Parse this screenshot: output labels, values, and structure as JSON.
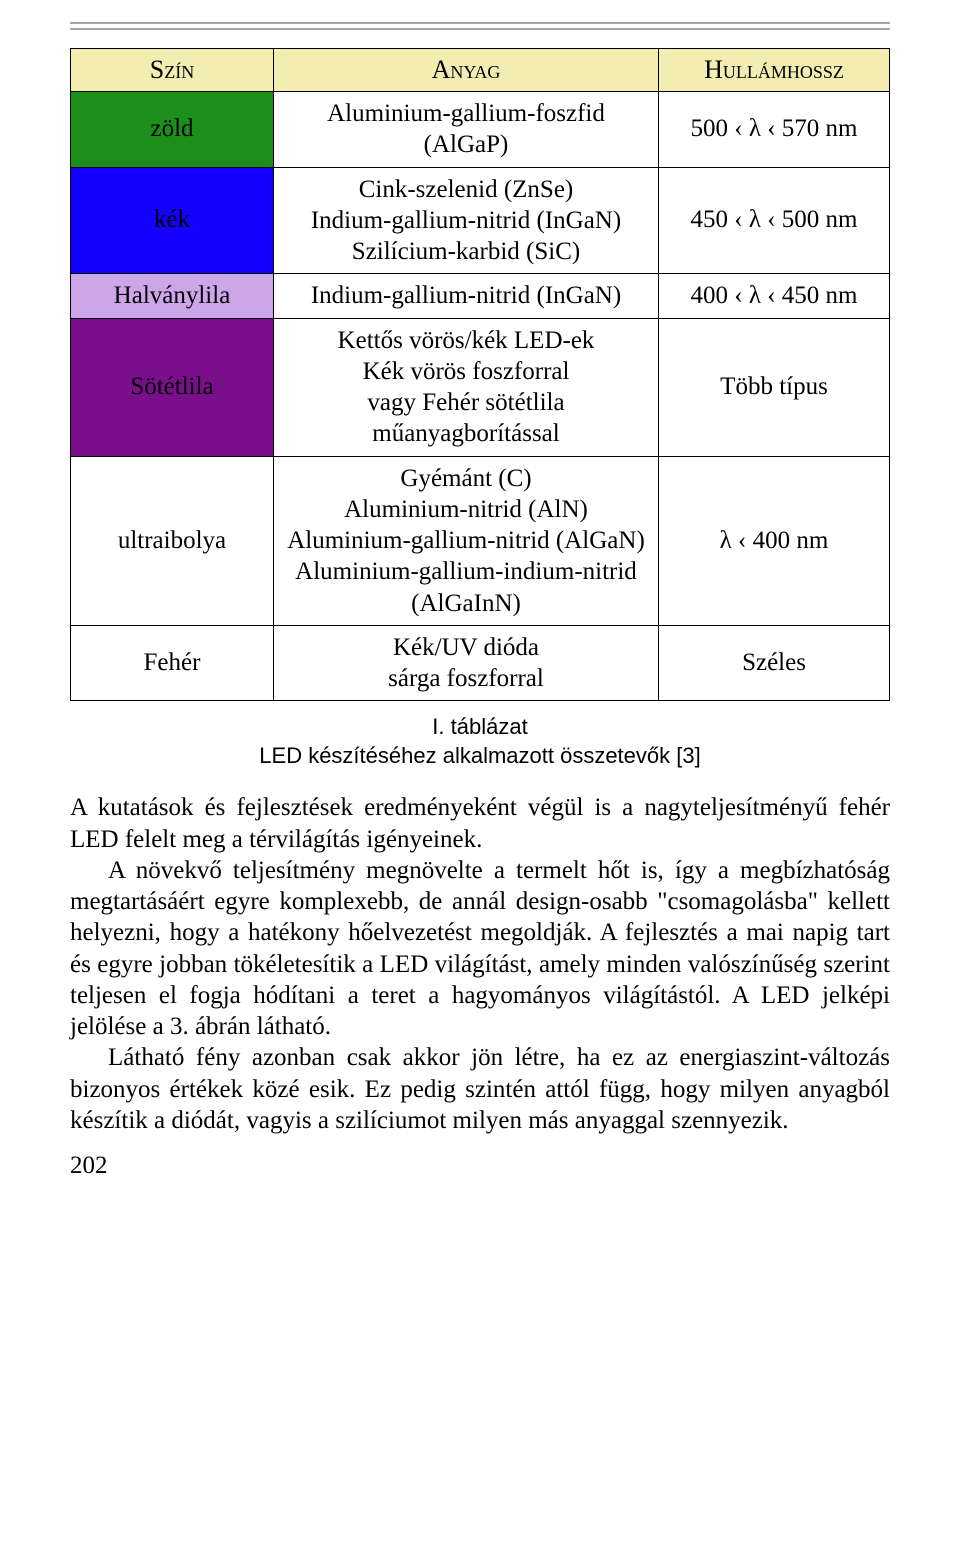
{
  "table": {
    "headers": {
      "color": "Szín",
      "material": "Anyag",
      "wavelength": "Hullámhossz"
    },
    "rows": [
      {
        "color_label": "zöld",
        "color_hex": "#1b8e1b",
        "text_color": "#000000",
        "material": "Aluminium-gallium-foszfid (AlGaP)",
        "wavelength": "500 ‹ λ ‹ 570 nm"
      },
      {
        "color_label": "kék",
        "color_hex": "#1400ff",
        "text_color": "#000000",
        "material": "Cink-szelenid (ZnSe)\nIndium-gallium-nitrid (InGaN)\nSzilícium-karbid (SiC)",
        "wavelength": "450 ‹ λ ‹ 500 nm"
      },
      {
        "color_label": "Halványlila",
        "color_hex": "#cda6ea",
        "text_color": "#000000",
        "material": "Indium-gallium-nitrid (InGaN)",
        "wavelength": "400 ‹ λ ‹ 450 nm"
      },
      {
        "color_label": "Sötétlila",
        "color_hex": "#7a0f8c",
        "text_color": "#000000",
        "material": "Kettős vörös/kék LED-ek\nKék vörös foszforral\nvagy Fehér sötétlila\nműanyagborítással",
        "wavelength": "Több típus"
      },
      {
        "color_label": "ultraibolya",
        "color_hex": "#ffffff",
        "text_color": "#000000",
        "material": "Gyémánt (C)\nAluminium-nitrid (AlN)\nAluminium-gallium-nitrid (AlGaN)\nAluminium-gallium-indium-nitrid (AlGaInN)",
        "wavelength": "λ ‹ 400 nm"
      },
      {
        "color_label": "Fehér",
        "color_hex": "#ffffff",
        "text_color": "#000000",
        "material": "Kék/UV dióda\nsárga foszforral",
        "wavelength": "Széles"
      }
    ]
  },
  "caption": {
    "line1": "I. táblázat",
    "line2": "LED készítéséhez alkalmazott összetevők [3]"
  },
  "paragraphs": {
    "p1": "A kutatások és fejlesztések eredményeként végül is a nagyteljesítményű fehér LED felelt meg a térvilágítás igényeinek.",
    "p2": "A növekvő teljesítmény megnövelte a termelt hőt is, így a megbízhatóság megtartásáért egyre komplexebb, de annál design-osabb \"csomagolásba\" kellett helyezni, hogy a hatékony hőelvezetést megoldják. A fejlesztés a mai napig tart és egyre jobban tökéletesítik a LED világítást, amely minden valószínűség szerint teljesen el fogja hódítani a teret a hagyományos világítástól. A LED jelképi jelölése a 3. ábrán látható.",
    "p3": "Látható fény azonban csak akkor jön létre, ha ez az energiaszint-változás bizonyos értékek közé esik. Ez pedig szintén attól függ, hogy milyen anyagból készítik a diódát, vagyis a szilíciumot milyen más anyaggal szennyezik."
  },
  "page_number": "202"
}
